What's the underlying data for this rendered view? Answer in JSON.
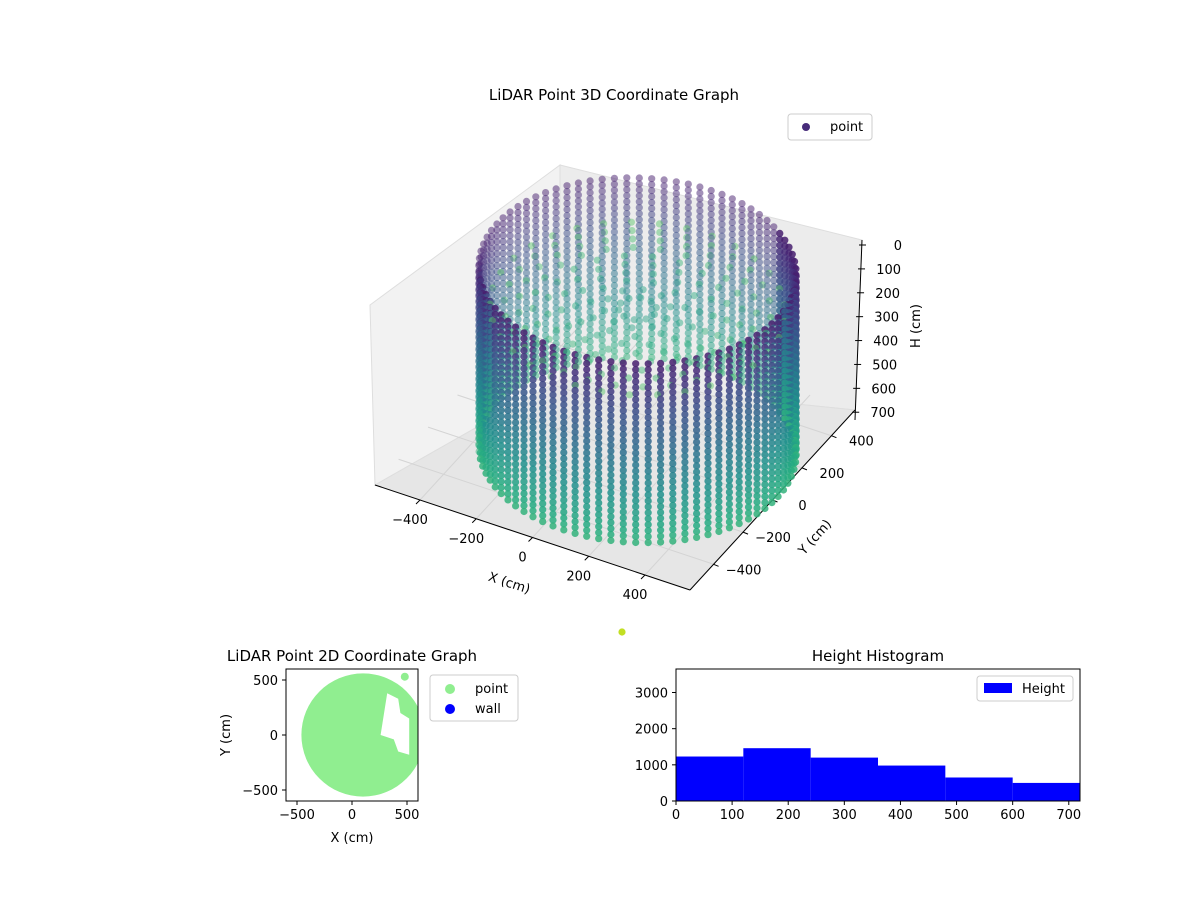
{
  "chart_data": [
    {
      "type": "scatter",
      "projection": "3d",
      "title": "LiDAR Point 3D Coordinate Graph",
      "xlabel": "X (cm)",
      "ylabel": "Y (cm)",
      "zlabel": "H (cm)",
      "xlim": [
        -560,
        560
      ],
      "ylim": [
        -560,
        560
      ],
      "zlim": [
        0,
        720
      ],
      "z_inverted": true,
      "x_ticks": [
        -400,
        -200,
        0,
        200,
        400
      ],
      "y_ticks": [
        -400,
        -200,
        0,
        200,
        400
      ],
      "z_ticks": [
        0,
        100,
        200,
        300,
        400,
        500,
        600,
        700
      ],
      "colormap": "viridis",
      "legend": {
        "position": "top-right",
        "entries": [
          {
            "name": "point",
            "color": "#472c7a"
          }
        ]
      },
      "outlier_point": {
        "x": 240,
        "y": -400,
        "h": 720,
        "color": "#c2df23"
      }
    },
    {
      "type": "scatter",
      "title": "LiDAR Point 2D Coordinate Graph",
      "xlabel": "X (cm)",
      "ylabel": "Y (cm)",
      "xlim": [
        -600,
        600
      ],
      "ylim": [
        -600,
        600
      ],
      "x_ticks": [
        -500,
        0,
        500
      ],
      "y_ticks": [
        -500,
        0,
        500
      ],
      "legend": {
        "position": "outside-right",
        "entries": [
          {
            "name": "point",
            "color": "#90ee90"
          },
          {
            "name": "wall",
            "color": "#0000ff"
          }
        ]
      },
      "region": {
        "center": [
          100,
          0
        ],
        "radius": 560,
        "color": "#90ee90"
      },
      "isolated_point": {
        "x": 480,
        "y": 530
      }
    },
    {
      "type": "bar",
      "subtype": "histogram",
      "title": "Height Histogram",
      "xlim": [
        0,
        720
      ],
      "ylim": [
        0,
        3650
      ],
      "x_ticks": [
        0,
        100,
        200,
        300,
        400,
        500,
        600,
        700
      ],
      "y_ticks": [
        0,
        1000,
        2000,
        3000
      ],
      "bin_edges": [
        0,
        120,
        240,
        360,
        480,
        600,
        720
      ],
      "series": [
        {
          "name": "Height",
          "values": [
            1230,
            1460,
            1200,
            980,
            650,
            500
          ],
          "color": "#0000ff"
        }
      ],
      "legend": {
        "position": "top-right"
      }
    }
  ]
}
